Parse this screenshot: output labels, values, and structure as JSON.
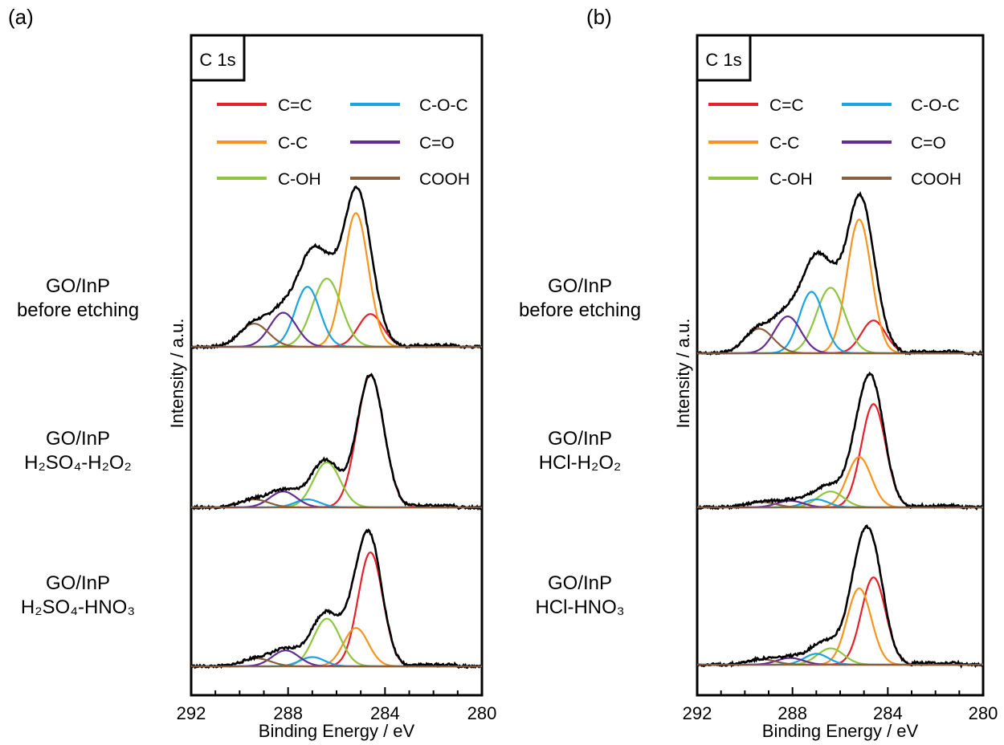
{
  "chart_data": [
    {
      "type": "line",
      "panel_label": "(a)",
      "box_label": "C 1s",
      "xlabel": "Binding Energy / eV",
      "ylabel": "Intensity / a.u.",
      "xlim": [
        292,
        280
      ],
      "x_ticks": [
        292,
        288,
        284,
        280
      ],
      "x_reversed": true,
      "legend_position": "top",
      "legend": [
        {
          "name": "C=C",
          "color": "#e8202a"
        },
        {
          "name": "C-O-C",
          "color": "#1ba4e2"
        },
        {
          "name": "C-C",
          "color": "#f7941d"
        },
        {
          "name": "C=O",
          "color": "#662d91"
        },
        {
          "name": "C-OH",
          "color": "#8dc63f"
        },
        {
          "name": "COOH",
          "color": "#8b5e3c"
        }
      ],
      "spectra": [
        {
          "label_lines": [
            "GO/InP",
            "before etching"
          ],
          "components": [
            {
              "name": "C=C",
              "center": 284.6,
              "fwhm": 1.2,
              "height": 0.24
            },
            {
              "name": "C-C",
              "center": 285.2,
              "fwhm": 1.2,
              "height": 0.98
            },
            {
              "name": "C-OH",
              "center": 286.4,
              "fwhm": 1.4,
              "height": 0.5
            },
            {
              "name": "C-O-C",
              "center": 287.2,
              "fwhm": 1.2,
              "height": 0.44
            },
            {
              "name": "C=O",
              "center": 288.2,
              "fwhm": 1.3,
              "height": 0.25
            },
            {
              "name": "COOH",
              "center": 289.4,
              "fwhm": 1.4,
              "height": 0.17
            }
          ]
        },
        {
          "label_lines": [
            "GO/InP",
            "H₂SO₄-H₂O₂"
          ],
          "components": [
            {
              "name": "C=C",
              "center": 284.6,
              "fwhm": 1.3,
              "height": 1.0
            },
            {
              "name": "C-C",
              "center": 285.2,
              "fwhm": 1.2,
              "height": 0.0
            },
            {
              "name": "C-OH",
              "center": 286.4,
              "fwhm": 1.3,
              "height": 0.34
            },
            {
              "name": "C-O-C",
              "center": 287.2,
              "fwhm": 1.2,
              "height": 0.06
            },
            {
              "name": "C=O",
              "center": 288.2,
              "fwhm": 1.3,
              "height": 0.12
            },
            {
              "name": "COOH",
              "center": 289.4,
              "fwhm": 1.4,
              "height": 0.06
            }
          ]
        },
        {
          "label_lines": [
            "GO/InP",
            "H₂SO₄-HNO₃"
          ],
          "components": [
            {
              "name": "C=C",
              "center": 284.6,
              "fwhm": 1.2,
              "height": 0.86
            },
            {
              "name": "C-C",
              "center": 285.2,
              "fwhm": 1.2,
              "height": 0.29
            },
            {
              "name": "C-OH",
              "center": 286.4,
              "fwhm": 1.3,
              "height": 0.36
            },
            {
              "name": "C-O-C",
              "center": 287.0,
              "fwhm": 1.2,
              "height": 0.07
            },
            {
              "name": "C=O",
              "center": 288.1,
              "fwhm": 1.3,
              "height": 0.12
            },
            {
              "name": "COOH",
              "center": 289.3,
              "fwhm": 1.4,
              "height": 0.06
            }
          ]
        }
      ]
    },
    {
      "type": "line",
      "panel_label": "(b)",
      "box_label": "C 1s",
      "xlabel": "Binding Energy / eV",
      "ylabel": "Intensity / a.u.",
      "xlim": [
        292,
        280
      ],
      "x_ticks": [
        292,
        288,
        284,
        280
      ],
      "x_reversed": true,
      "legend_position": "top",
      "legend": [
        {
          "name": "C=C",
          "color": "#e8202a"
        },
        {
          "name": "C-O-C",
          "color": "#1ba4e2"
        },
        {
          "name": "C-C",
          "color": "#f7941d"
        },
        {
          "name": "C=O",
          "color": "#662d91"
        },
        {
          "name": "C-OH",
          "color": "#8dc63f"
        },
        {
          "name": "COOH",
          "color": "#8b5e3c"
        }
      ],
      "spectra": [
        {
          "label_lines": [
            "GO/InP",
            "before etching"
          ],
          "components": [
            {
              "name": "C=C",
              "center": 284.6,
              "fwhm": 1.2,
              "height": 0.24
            },
            {
              "name": "C-C",
              "center": 285.2,
              "fwhm": 1.2,
              "height": 0.98
            },
            {
              "name": "C-OH",
              "center": 286.4,
              "fwhm": 1.4,
              "height": 0.48
            },
            {
              "name": "C-O-C",
              "center": 287.2,
              "fwhm": 1.2,
              "height": 0.45
            },
            {
              "name": "C=O",
              "center": 288.2,
              "fwhm": 1.3,
              "height": 0.27
            },
            {
              "name": "COOH",
              "center": 289.4,
              "fwhm": 1.4,
              "height": 0.18
            }
          ]
        },
        {
          "label_lines": [
            "GO/InP",
            "HCl-H₂O₂"
          ],
          "components": [
            {
              "name": "C=C",
              "center": 284.6,
              "fwhm": 1.2,
              "height": 0.78
            },
            {
              "name": "C-C",
              "center": 285.2,
              "fwhm": 1.2,
              "height": 0.38
            },
            {
              "name": "C-OH",
              "center": 286.4,
              "fwhm": 1.3,
              "height": 0.12
            },
            {
              "name": "C-O-C",
              "center": 287.0,
              "fwhm": 1.2,
              "height": 0.06
            },
            {
              "name": "C=O",
              "center": 288.1,
              "fwhm": 1.3,
              "height": 0.05
            },
            {
              "name": "COOH",
              "center": 289.3,
              "fwhm": 1.4,
              "height": 0.04
            }
          ]
        },
        {
          "label_lines": [
            "GO/InP",
            "HCl-HNO₃"
          ],
          "components": [
            {
              "name": "C=C",
              "center": 284.6,
              "fwhm": 1.2,
              "height": 0.64
            },
            {
              "name": "C-C",
              "center": 285.2,
              "fwhm": 1.2,
              "height": 0.56
            },
            {
              "name": "C-OH",
              "center": 286.4,
              "fwhm": 1.3,
              "height": 0.12
            },
            {
              "name": "C-O-C",
              "center": 287.0,
              "fwhm": 1.2,
              "height": 0.08
            },
            {
              "name": "C=O",
              "center": 288.1,
              "fwhm": 1.3,
              "height": 0.05
            },
            {
              "name": "COOH",
              "center": 289.3,
              "fwhm": 1.4,
              "height": 0.04
            }
          ]
        }
      ]
    }
  ]
}
